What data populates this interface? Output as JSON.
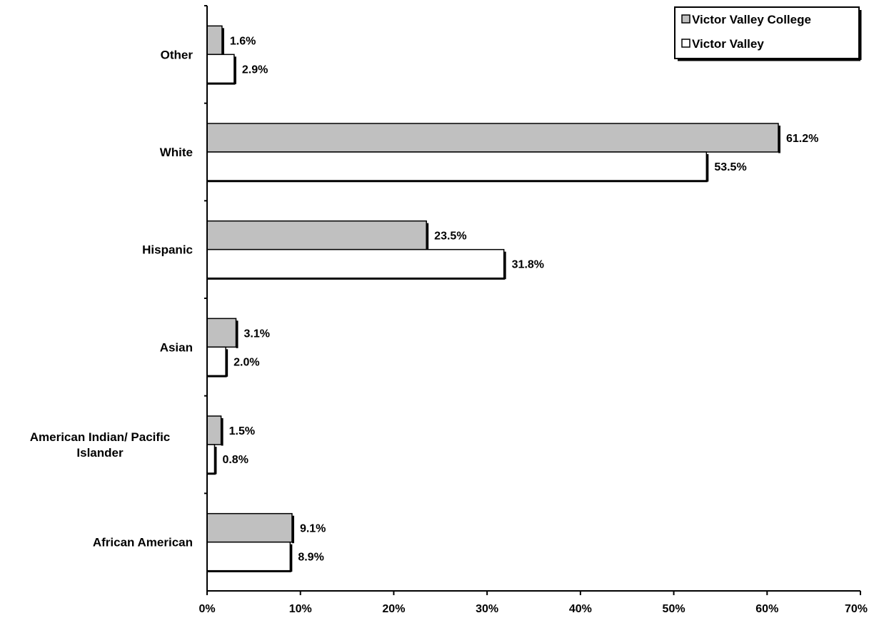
{
  "chart_data": {
    "type": "bar",
    "orientation": "horizontal",
    "categories": [
      "African American",
      "American Indian/ Pacific Islander",
      "Asian",
      "Hispanic",
      "White",
      "Other"
    ],
    "category_lines": [
      [
        "African American"
      ],
      [
        "American Indian/ Pacific",
        "Islander"
      ],
      [
        "Asian"
      ],
      [
        "Hispanic"
      ],
      [
        "White"
      ],
      [
        "Other"
      ]
    ],
    "series": [
      {
        "name": "Victor Valley College",
        "values": [
          9.1,
          1.5,
          3.1,
          23.5,
          61.2,
          1.6
        ],
        "labels": [
          "9.1%",
          "1.5%",
          "3.1%",
          "23.5%",
          "61.2%",
          "1.6%"
        ],
        "color": "#c0c0c0"
      },
      {
        "name": "Victor Valley",
        "values": [
          8.9,
          0.8,
          2.0,
          31.8,
          53.5,
          2.9
        ],
        "labels": [
          "8.9%",
          "0.8%",
          "2.0%",
          "31.8%",
          "53.5%",
          "2.9%"
        ],
        "color": "#ffffff"
      }
    ],
    "xlim": [
      0,
      70
    ],
    "xticks": [
      0,
      10,
      20,
      30,
      40,
      50,
      60,
      70
    ],
    "xtick_labels": [
      "0%",
      "10%",
      "20%",
      "30%",
      "40%",
      "50%",
      "60%",
      "70%"
    ],
    "legend_position": "top-right",
    "grid": false
  }
}
